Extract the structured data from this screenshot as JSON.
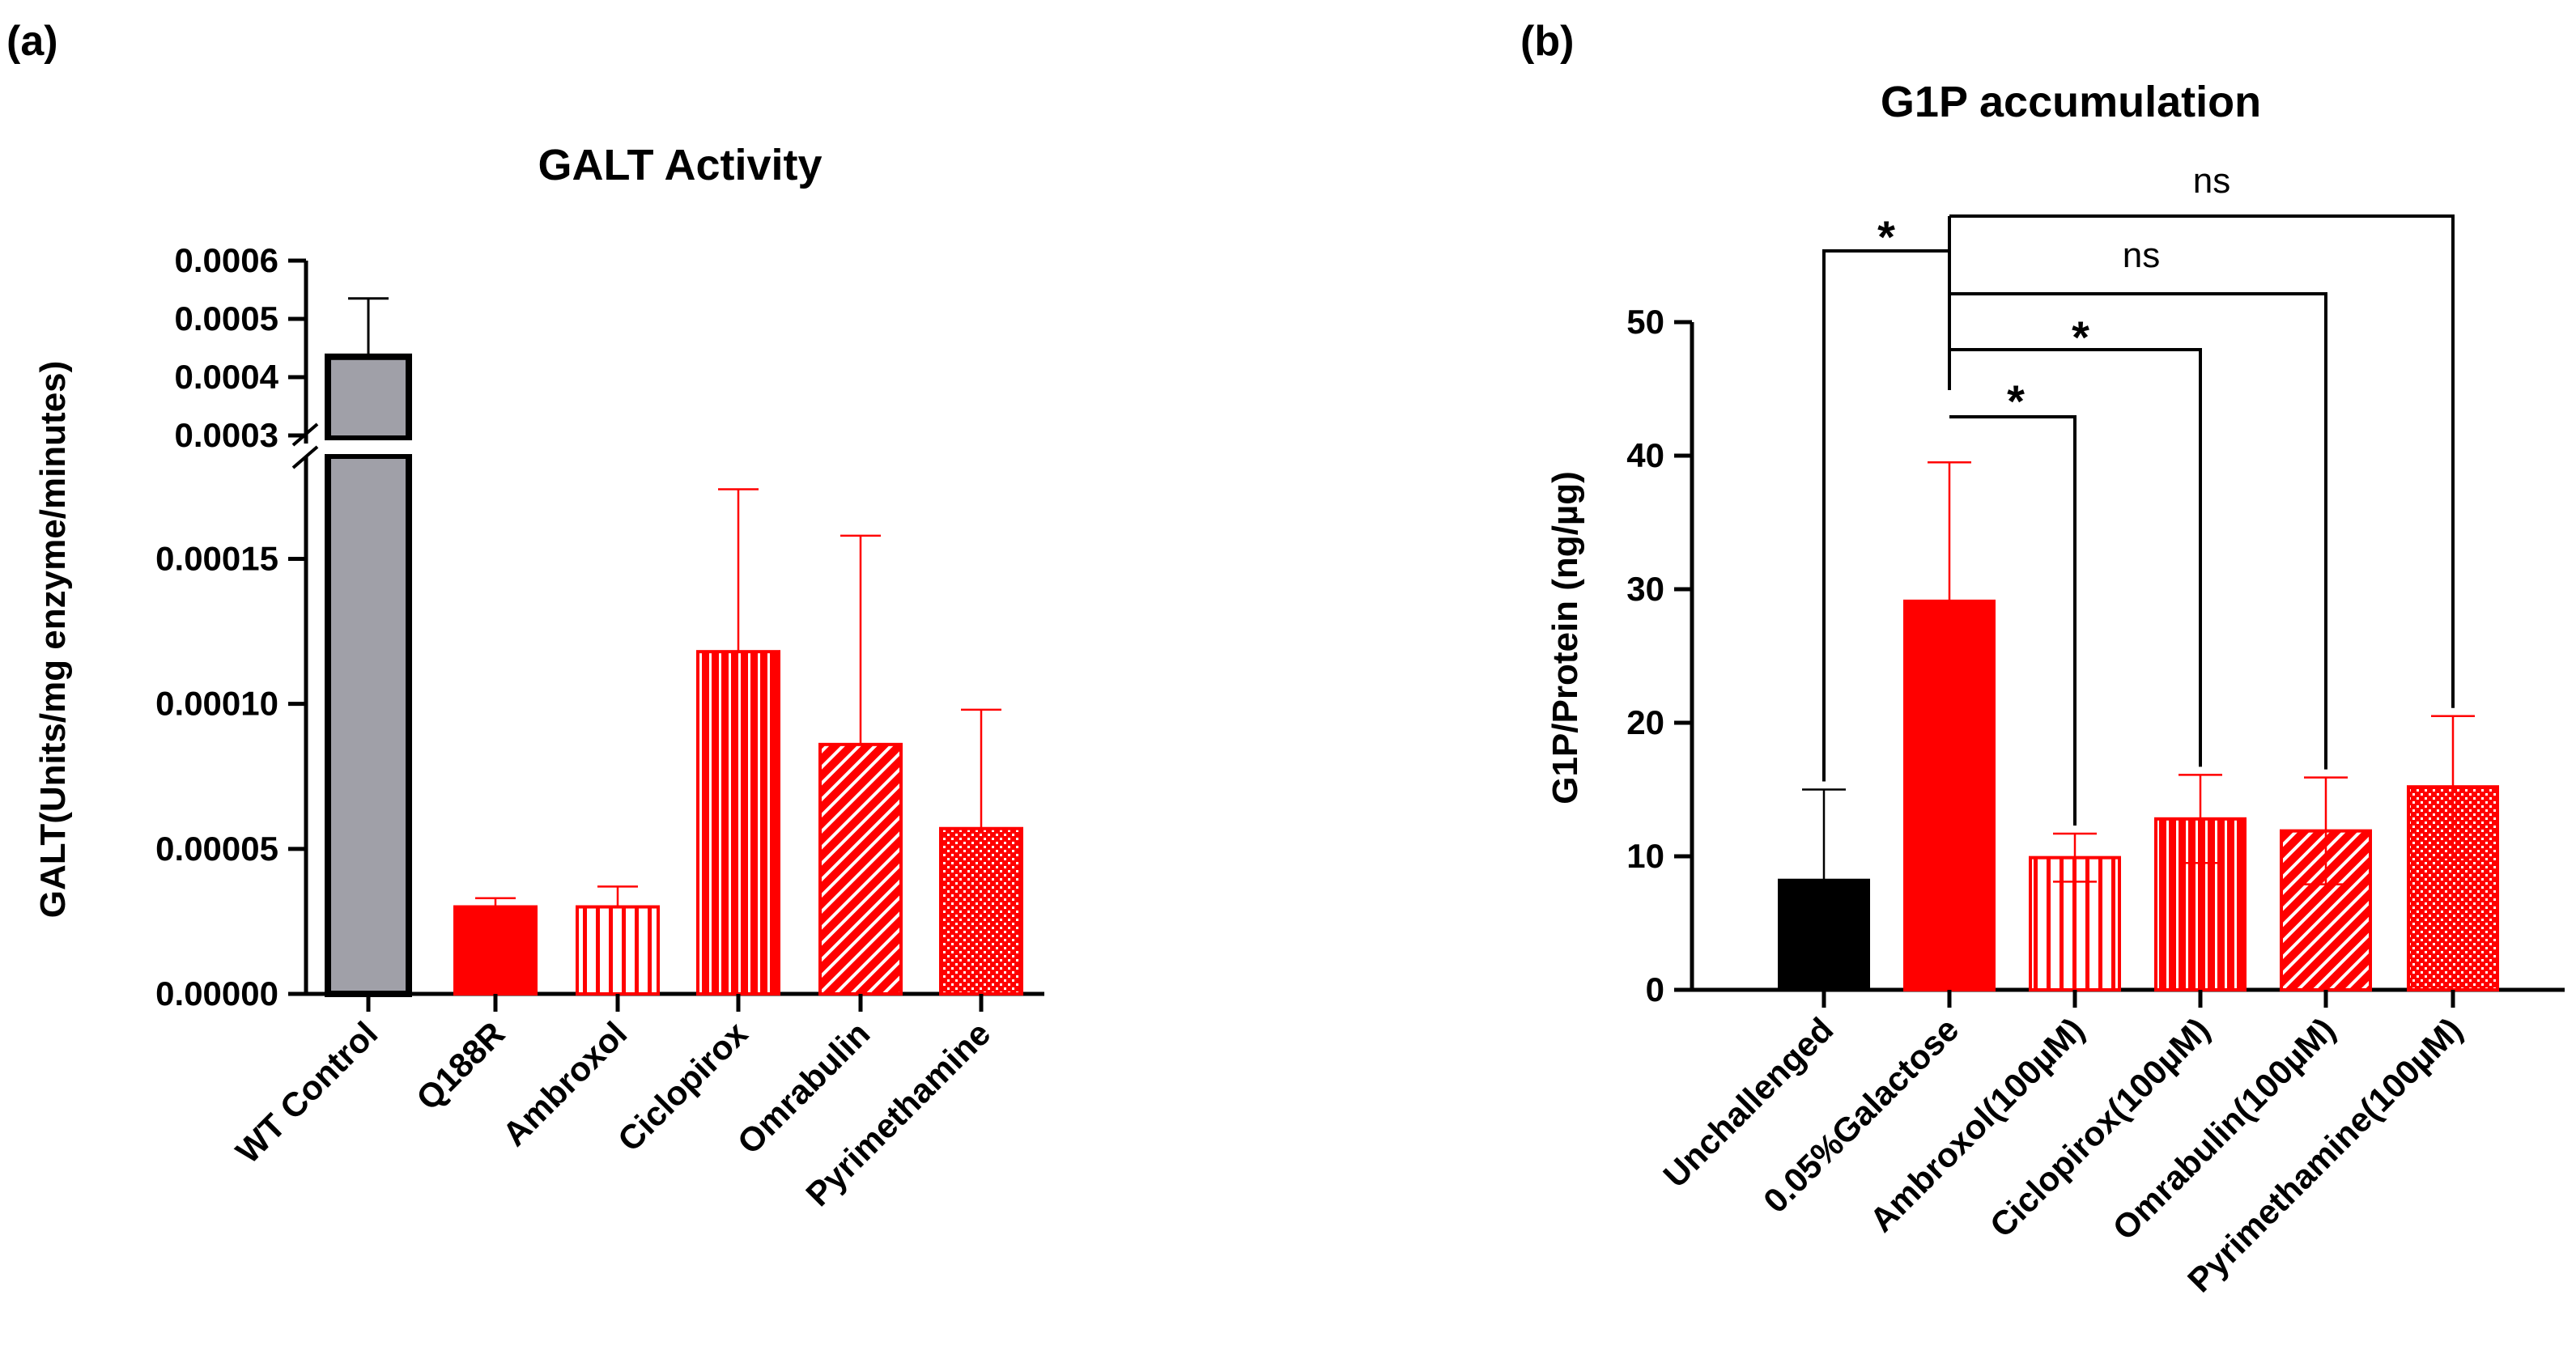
{
  "chart_data": [
    {
      "panel": "(a)",
      "type": "bar",
      "title": "GALT Activity",
      "ylabel": "GALT(Units/mg enzyme/minutes)",
      "xlabel": "",
      "y_axis_break": true,
      "lower_ylim": [
        0,
        0.00018
      ],
      "upper_ylim": [
        0.0003,
        0.0006
      ],
      "lower_ticks": [
        "0.00000",
        "0.00005",
        "0.00010",
        "0.00015"
      ],
      "lower_tick_values": [
        0,
        5e-05,
        0.0001,
        0.00015
      ],
      "upper_ticks": [
        "0.0003",
        "0.0004",
        "0.0005",
        "0.0006"
      ],
      "upper_tick_values": [
        0.0003,
        0.0004,
        0.0005,
        0.0006
      ],
      "categories": [
        "WT Control",
        "Q188R",
        "Ambroxol",
        "Ciclopirox",
        "Omrabulin",
        "Pyrimethamine"
      ],
      "values": [
        0.000435,
        3e-05,
        3e-05,
        0.000118,
        8.6e-05,
        5.7e-05
      ],
      "error_upper": [
        0.000535,
        3.3e-05,
        3.7e-05,
        0.000174,
        0.000158,
        9.8e-05
      ],
      "colors": [
        "#a0a0a8",
        "#ff0000",
        "#ff0000",
        "#ff0000",
        "#ff0000",
        "#ff0000"
      ],
      "patterns": [
        "solid",
        "solid",
        "vertical-wide",
        "vertical-fine",
        "diagonal",
        "crosshatch"
      ],
      "grid": false,
      "legend": "none"
    },
    {
      "panel": "(b)",
      "type": "bar",
      "title": "G1P accumulation",
      "ylabel": "G1P/Protein (ng/µg)",
      "xlabel": "",
      "ylim": [
        0,
        50
      ],
      "yticks": [
        "0",
        "10",
        "20",
        "30",
        "40",
        "50"
      ],
      "ytick_values": [
        0,
        10,
        20,
        30,
        40,
        50
      ],
      "categories": [
        "Unchallenged",
        "0.05%Galactose",
        "Ambroxol(100µM)",
        "Ciclopirox(100µM)",
        "Omrabulin(100µM)",
        "Pyrimethamine(100µM)"
      ],
      "values": [
        8.2,
        29.1,
        9.9,
        12.8,
        11.9,
        15.2
      ],
      "error_upper": [
        15.0,
        39.5,
        11.7,
        16.1,
        15.9,
        20.5
      ],
      "error_lower": [
        null,
        null,
        8.1,
        9.5,
        7.9,
        9.9
      ],
      "colors": [
        "#000000",
        "#ff0000",
        "#ff0000",
        "#ff0000",
        "#ff0000",
        "#ff0000"
      ],
      "patterns": [
        "solid",
        "solid",
        "vertical-wide",
        "vertical-fine",
        "diagonal",
        "crosshatch"
      ],
      "significance": [
        {
          "from": "0.05%Galactose",
          "to": "Unchallenged",
          "label": "*"
        },
        {
          "from": "0.05%Galactose",
          "to": "Ambroxol(100µM)",
          "label": "*"
        },
        {
          "from": "0.05%Galactose",
          "to": "Ciclopirox(100µM)",
          "label": "*"
        },
        {
          "from": "0.05%Galactose",
          "to": "Omrabulin(100µM)",
          "label": "ns"
        },
        {
          "from": "0.05%Galactose",
          "to": "Pyrimethamine(100µM)",
          "label": "ns"
        }
      ],
      "grid": false,
      "legend": "none"
    }
  ]
}
